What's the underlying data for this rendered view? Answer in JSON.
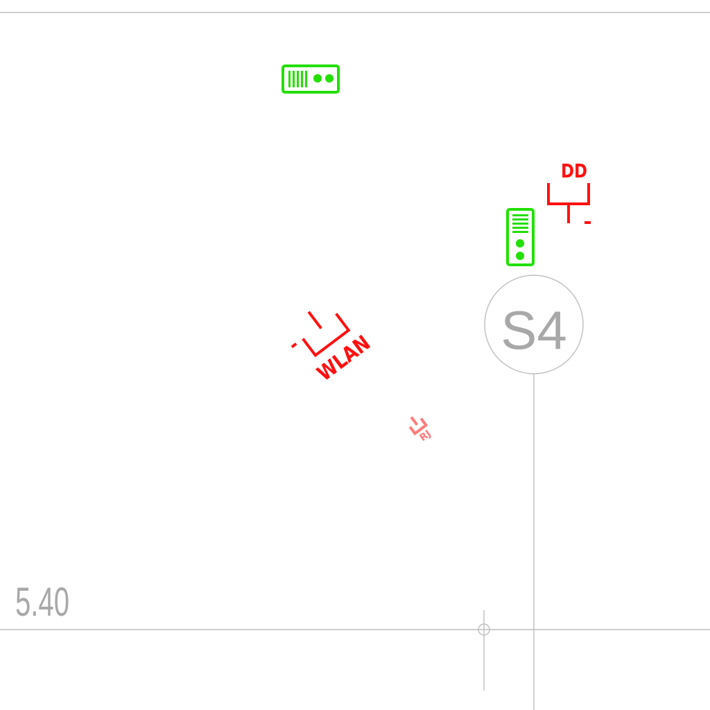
{
  "drawing": {
    "elevation_label": "5.40",
    "axis_label": "S4",
    "socket_wlan_label": "WLAN",
    "socket_data_label": "DD",
    "socket_small_label": "RJ",
    "colors": {
      "grid": "#bdbdbd",
      "text": "#a8a8a8",
      "electrical_red": "#ff1010",
      "device_green": "#22e000"
    },
    "symbols": [
      "network-outlet-horizontal-icon",
      "network-outlet-vertical-icon",
      "data-socket-icon",
      "wlan-socket-icon",
      "small-socket-icon",
      "axis-marker",
      "level-crosshair-icon"
    ]
  }
}
